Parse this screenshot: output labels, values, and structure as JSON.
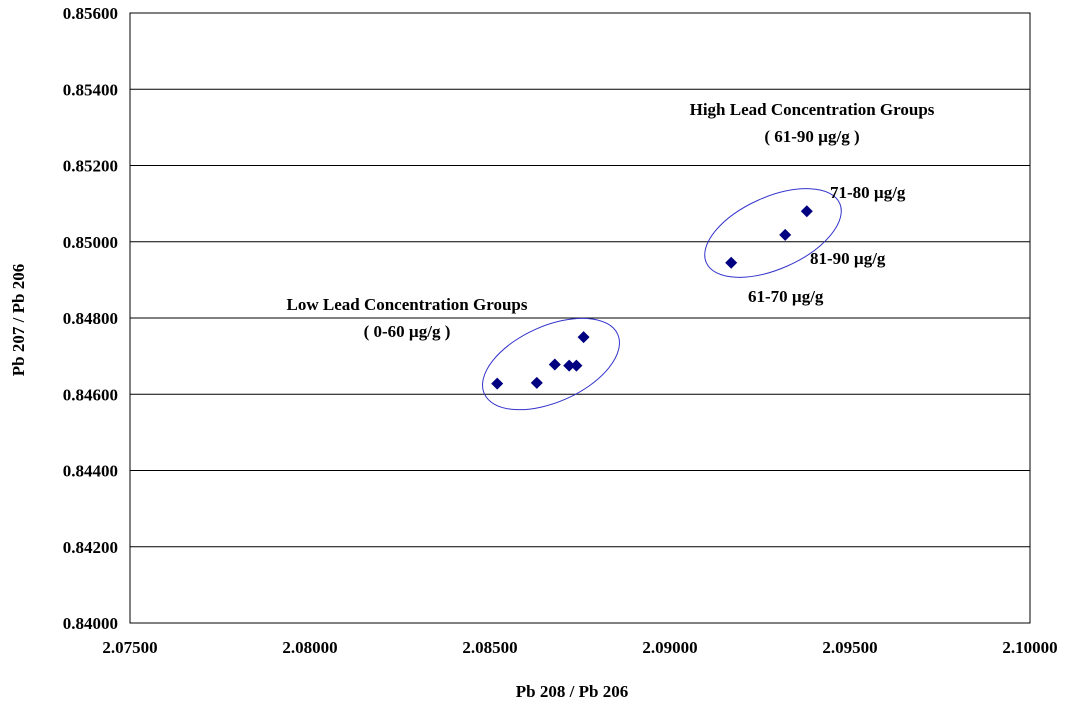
{
  "chart_data": {
    "type": "scatter",
    "title": "",
    "xlabel": "Pb 208 / Pb 206",
    "ylabel": "Pb 207 / Pb 206",
    "xlim": [
      2.075,
      2.1
    ],
    "ylim": [
      0.84,
      0.856
    ],
    "x_ticks": [
      2.075,
      2.08,
      2.085,
      2.09,
      2.095,
      2.1
    ],
    "x_tick_labels": [
      "2.07500",
      "2.08000",
      "2.08500",
      "2.09000",
      "2.09500",
      "2.10000"
    ],
    "y_ticks": [
      0.84,
      0.842,
      0.844,
      0.846,
      0.848,
      0.85,
      0.852,
      0.854,
      0.856
    ],
    "y_tick_labels": [
      "0.84000",
      "0.84200",
      "0.84400",
      "0.84600",
      "0.84800",
      "0.85000",
      "0.85200",
      "0.85400",
      "0.85600"
    ],
    "grid": "horizontal",
    "legend": "none",
    "marker": "diamond",
    "marker_color": "#000080",
    "ellipse_color": "#3333cc",
    "series": [
      {
        "points": [
          {
            "x": 2.0852,
            "y": 0.84628
          },
          {
            "x": 2.0863,
            "y": 0.8463
          },
          {
            "x": 2.0868,
            "y": 0.84678
          },
          {
            "x": 2.0872,
            "y": 0.84675
          },
          {
            "x": 2.0874,
            "y": 0.84675
          },
          {
            "x": 2.0876,
            "y": 0.8475
          },
          {
            "x": 2.0917,
            "y": 0.84945
          },
          {
            "x": 2.0932,
            "y": 0.85018
          },
          {
            "x": 2.0938,
            "y": 0.8508
          }
        ]
      }
    ],
    "groups": [
      {
        "label": "Low Lead Concentration Groups",
        "range": "( 0-60 µg/g )"
      },
      {
        "label": "High Lead Concentration Groups",
        "range": "( 61-90 µg/g )"
      }
    ],
    "annotations": [
      "71-80 µg/g",
      "81-90 µg/g",
      "61-70 µg/g"
    ]
  }
}
